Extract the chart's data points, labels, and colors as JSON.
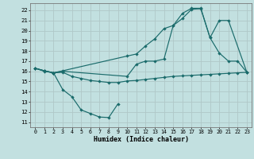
{
  "xlabel": "Humidex (Indice chaleur)",
  "background_color": "#c2e0e0",
  "grid_color": "#b0c8c8",
  "line_color": "#1a6b6b",
  "xlim": [
    -0.5,
    23.5
  ],
  "ylim": [
    10.5,
    22.7
  ],
  "xticks": [
    0,
    1,
    2,
    3,
    4,
    5,
    6,
    7,
    8,
    9,
    10,
    11,
    12,
    13,
    14,
    15,
    16,
    17,
    18,
    19,
    20,
    21,
    22,
    23
  ],
  "yticks": [
    11,
    12,
    13,
    14,
    15,
    16,
    17,
    18,
    19,
    20,
    21,
    22
  ],
  "line1_x": [
    0,
    1,
    2,
    3,
    4,
    5,
    6,
    7,
    8,
    9
  ],
  "line1_y": [
    16.3,
    16.0,
    15.85,
    14.2,
    13.5,
    12.2,
    11.85,
    11.5,
    11.45,
    12.8
  ],
  "line2_x": [
    0,
    1,
    2,
    3,
    4,
    5,
    6,
    7,
    8,
    9,
    10,
    11,
    12,
    13,
    14,
    15,
    16,
    17,
    18,
    19,
    20,
    21,
    22,
    23
  ],
  "line2_y": [
    16.3,
    16.05,
    15.85,
    15.9,
    15.5,
    15.3,
    15.1,
    15.0,
    14.9,
    14.9,
    15.05,
    15.1,
    15.2,
    15.3,
    15.4,
    15.5,
    15.55,
    15.6,
    15.65,
    15.7,
    15.75,
    15.8,
    15.85,
    15.9
  ],
  "line3_x": [
    0,
    1,
    2,
    3,
    10,
    11,
    12,
    13,
    14,
    15,
    16,
    17,
    18,
    19,
    20,
    21,
    23
  ],
  "line3_y": [
    16.3,
    16.05,
    15.85,
    16.0,
    15.5,
    16.7,
    17.0,
    17.0,
    17.2,
    20.5,
    21.7,
    22.2,
    22.2,
    19.3,
    21.0,
    21.0,
    15.9
  ],
  "line4_x": [
    0,
    1,
    2,
    3,
    10,
    11,
    12,
    13,
    14,
    15,
    16,
    17,
    18,
    19,
    20,
    21,
    22,
    23
  ],
  "line4_y": [
    16.3,
    16.05,
    15.85,
    16.05,
    17.5,
    17.7,
    18.5,
    19.2,
    20.2,
    20.5,
    21.2,
    22.1,
    22.15,
    19.3,
    17.8,
    17.0,
    17.0,
    15.9
  ]
}
